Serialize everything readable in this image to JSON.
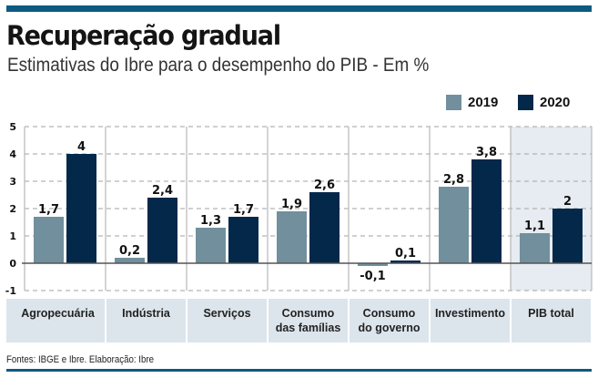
{
  "header": {
    "title": "Recuperação gradual",
    "subtitle": "Estimativas do Ibre para o desempenho do PIB - Em %"
  },
  "footer": {
    "source": "Fontes: IBGE e Ibre. Elaboração: Ibre"
  },
  "colors": {
    "accent_bar": "#0e5a82",
    "series_2019": "#718f9c",
    "series_2020": "#04284a",
    "category_band": "#dce5ec",
    "highlight_bg": "#e6ecf1"
  },
  "chart_data": {
    "type": "bar",
    "title": "Recuperação gradual",
    "subtitle": "Estimativas do Ibre para o desempenho do PIB - Em %",
    "xlabel": "",
    "ylabel": "",
    "ylim": [
      -1,
      5
    ],
    "yticks": [
      "5",
      "4",
      "3",
      "2",
      "1",
      "0",
      "-1"
    ],
    "ytick_values": [
      5,
      4,
      3,
      2,
      1,
      0,
      -1
    ],
    "grid": true,
    "legend_position": "top-right",
    "categories": [
      [
        "Agropecuária"
      ],
      [
        "Indústria"
      ],
      [
        "Serviços"
      ],
      [
        "Consumo",
        "das famílias"
      ],
      [
        "Consumo",
        "do governo"
      ],
      [
        "Investimento"
      ],
      [
        "PIB total"
      ]
    ],
    "highlighted_category": "PIB total",
    "series": [
      {
        "name": "2019",
        "values": [
          1.7,
          0.2,
          1.3,
          1.9,
          -0.1,
          2.8,
          1.1
        ],
        "labels": [
          "1,7",
          "0,2",
          "1,3",
          "1,9",
          "-0,1",
          "2,8",
          "1,1"
        ]
      },
      {
        "name": "2020",
        "values": [
          4,
          2.4,
          1.7,
          2.6,
          0.1,
          3.8,
          2
        ],
        "labels": [
          "4",
          "2,4",
          "1,7",
          "2,6",
          "0,1",
          "3,8",
          "2"
        ]
      }
    ],
    "source": "Fontes: IBGE e Ibre. Elaboração: Ibre"
  }
}
